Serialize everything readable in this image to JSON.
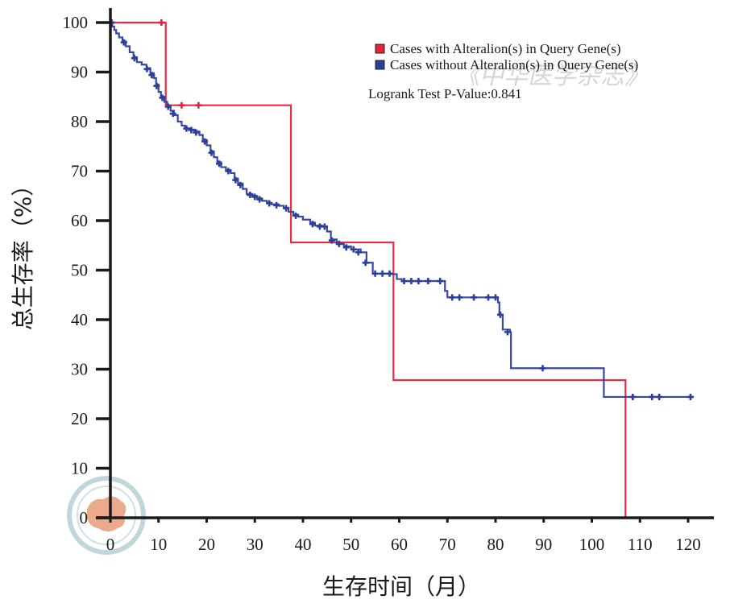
{
  "chart_data": {
    "type": "line",
    "subtype": "kaplan-meier survival curve",
    "xlabel": "生存时间（月）",
    "ylabel": "总生存率（%）",
    "xlim": [
      0,
      122
    ],
    "ylim": [
      0,
      100
    ],
    "xticks": [
      0,
      10,
      20,
      30,
      40,
      50,
      60,
      70,
      80,
      90,
      100,
      110,
      120
    ],
    "yticks": [
      0,
      10,
      20,
      30,
      40,
      50,
      60,
      70,
      80,
      90,
      100
    ],
    "legend_position": "top-right",
    "logrank_text": "Logrank Test P-Value:0.841",
    "series": [
      {
        "name": "Cases with Alteralion(s) in Query Gene(s)",
        "color": "#e8213a",
        "steps": [
          [
            0,
            100
          ],
          [
            11.5,
            83.3
          ],
          [
            37.5,
            55.6
          ],
          [
            58.8,
            27.8
          ],
          [
            107,
            0
          ]
        ],
        "censored": [
          [
            0.3,
            100
          ],
          [
            10.6,
            100
          ],
          [
            14.8,
            83.3
          ],
          [
            18.3,
            83.3
          ]
        ]
      },
      {
        "name": "Cases without Alteralion(s) in Query Gene(s)",
        "color": "#2c3f9a",
        "steps": [
          [
            0,
            100
          ],
          [
            0.4,
            99.2
          ],
          [
            0.8,
            98.5
          ],
          [
            1.2,
            97.8
          ],
          [
            1.8,
            97
          ],
          [
            2.5,
            96.2
          ],
          [
            3.2,
            95.2
          ],
          [
            4,
            94
          ],
          [
            4.8,
            93
          ],
          [
            5.5,
            92
          ],
          [
            6.5,
            91.5
          ],
          [
            7.5,
            90.8
          ],
          [
            8.3,
            89.8
          ],
          [
            9,
            88.8
          ],
          [
            9.5,
            87.5
          ],
          [
            10,
            86
          ],
          [
            10.5,
            85
          ],
          [
            11.2,
            84
          ],
          [
            11.8,
            83.2
          ],
          [
            12.5,
            82.2
          ],
          [
            13.2,
            81.3
          ],
          [
            14,
            80
          ],
          [
            14.8,
            79.2
          ],
          [
            15.5,
            78.6
          ],
          [
            16.5,
            78.4
          ],
          [
            17.5,
            78
          ],
          [
            18.5,
            77.3
          ],
          [
            19.2,
            76.3
          ],
          [
            20,
            75.2
          ],
          [
            20.8,
            74
          ],
          [
            21.5,
            72.8
          ],
          [
            22.2,
            71.8
          ],
          [
            23,
            70.8
          ],
          [
            24,
            70.2
          ],
          [
            25,
            69.6
          ],
          [
            25.8,
            68.5
          ],
          [
            26.5,
            67.5
          ],
          [
            27.5,
            66.4
          ],
          [
            28.3,
            65.4
          ],
          [
            29.5,
            65
          ],
          [
            30.5,
            64.5
          ],
          [
            31.5,
            64
          ],
          [
            32.5,
            63.6
          ],
          [
            33.5,
            63.3
          ],
          [
            35,
            63
          ],
          [
            36,
            62.6
          ],
          [
            37,
            61.8
          ],
          [
            38,
            61.2
          ],
          [
            39,
            60.8
          ],
          [
            40,
            60.2
          ],
          [
            41.5,
            59.6
          ],
          [
            42.5,
            59
          ],
          [
            44,
            58.8
          ],
          [
            45,
            57.8
          ],
          [
            45.8,
            56.2
          ],
          [
            47,
            55.3
          ],
          [
            48.5,
            54.8
          ],
          [
            50,
            54.2
          ],
          [
            52,
            53.6
          ],
          [
            53.2,
            51.5
          ],
          [
            54.5,
            49.3
          ],
          [
            58.5,
            49.2
          ],
          [
            59.5,
            48.2
          ],
          [
            60.5,
            47.8
          ],
          [
            69.5,
            45.8
          ],
          [
            70,
            44.5
          ],
          [
            80.5,
            43.5
          ],
          [
            80.8,
            41
          ],
          [
            81.5,
            38
          ],
          [
            83,
            37.5
          ],
          [
            83.2,
            30.2
          ],
          [
            102.5,
            24.4
          ],
          [
            121,
            24.4
          ]
        ],
        "censored": [
          [
            0.2,
            100
          ],
          [
            2.8,
            96
          ],
          [
            5,
            92.8
          ],
          [
            7.6,
            90.6
          ],
          [
            8.6,
            89.4
          ],
          [
            9.6,
            87.2
          ],
          [
            10.8,
            84.8
          ],
          [
            12,
            83
          ],
          [
            13,
            81.6
          ],
          [
            15.8,
            78.6
          ],
          [
            16.8,
            78.3
          ],
          [
            17.8,
            77.8
          ],
          [
            19.6,
            76
          ],
          [
            21,
            73.7
          ],
          [
            22.6,
            71.5
          ],
          [
            24.5,
            70
          ],
          [
            26,
            68.2
          ],
          [
            27,
            67.2
          ],
          [
            29,
            65.2
          ],
          [
            30,
            64.8
          ],
          [
            31,
            64.3
          ],
          [
            33,
            63.5
          ],
          [
            34.5,
            63.1
          ],
          [
            36.5,
            62.5
          ],
          [
            38.5,
            61
          ],
          [
            42,
            59.3
          ],
          [
            43.5,
            58.8
          ],
          [
            44.5,
            58.8
          ],
          [
            46,
            56
          ],
          [
            47.5,
            55.3
          ],
          [
            49,
            54.6
          ],
          [
            50.5,
            54.2
          ],
          [
            51.5,
            53.6
          ],
          [
            53,
            51.5
          ],
          [
            55,
            49.3
          ],
          [
            56.5,
            49.3
          ],
          [
            58,
            49.3
          ],
          [
            61,
            47.8
          ],
          [
            62.5,
            47.8
          ],
          [
            64,
            47.8
          ],
          [
            66,
            47.8
          ],
          [
            68.5,
            47.8
          ],
          [
            71,
            44.5
          ],
          [
            72.5,
            44.5
          ],
          [
            75.5,
            44.5
          ],
          [
            78.5,
            44.5
          ],
          [
            80,
            44.5
          ],
          [
            81,
            41
          ],
          [
            82.5,
            37.5
          ],
          [
            89.8,
            30.2
          ],
          [
            108.5,
            24.4
          ],
          [
            112.5,
            24.4
          ],
          [
            114,
            24.4
          ],
          [
            120.5,
            24.4
          ]
        ]
      }
    ]
  },
  "watermark": {
    "text": "《中华医学杂志》"
  }
}
